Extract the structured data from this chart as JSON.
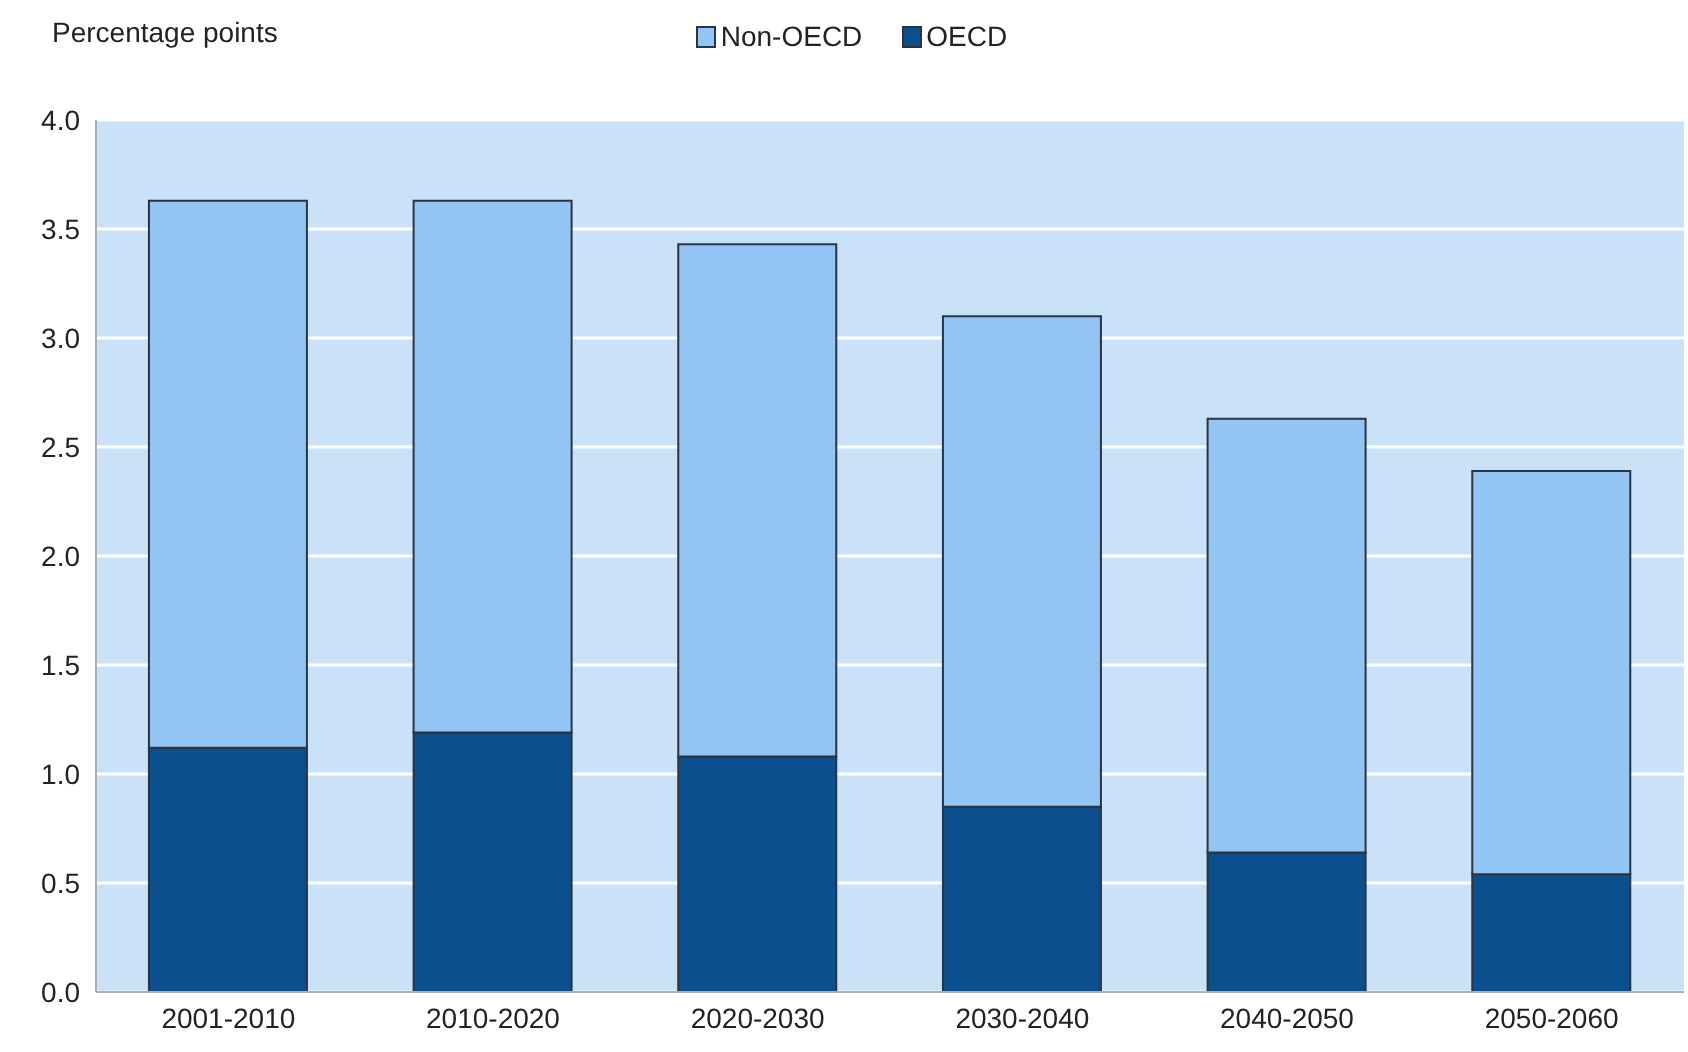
{
  "chart_data": {
    "type": "bar",
    "ylabel": "Percentage points",
    "categories": [
      "2001-2010",
      "2010-2020",
      "2020-2030",
      "2030-2040",
      "2040-2050",
      "2050-2060"
    ],
    "series": [
      {
        "name": "OECD",
        "color": "#0c4f8f",
        "values": [
          1.12,
          1.19,
          1.08,
          0.85,
          0.64,
          0.54
        ]
      },
      {
        "name": "Non-OECD",
        "color": "#93c5f4",
        "values": [
          2.51,
          2.44,
          2.35,
          2.25,
          1.99,
          1.85
        ]
      }
    ],
    "stacked": true,
    "ylim": [
      0,
      4
    ],
    "yticks": [
      {
        "value": 0,
        "label": "0.0"
      },
      0.5,
      {
        "value": 1,
        "label": "1.0"
      },
      1.5,
      {
        "value": 2,
        "label": "2.0"
      },
      2.5,
      {
        "value": 3,
        "label": "3.0"
      },
      3.5,
      {
        "value": 4,
        "label": "4.0"
      }
    ],
    "grid": "y",
    "legend": "top"
  }
}
